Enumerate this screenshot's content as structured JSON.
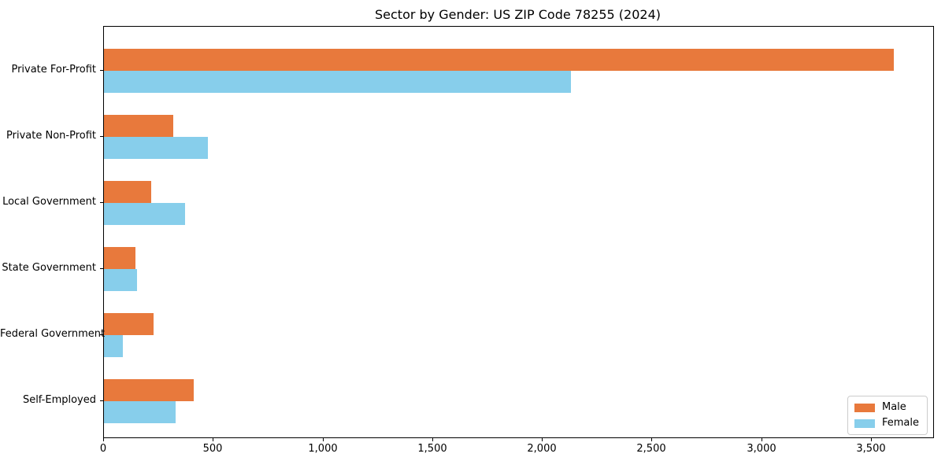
{
  "chart_data": {
    "type": "bar",
    "orientation": "horizontal",
    "title": "Sector by Gender: US ZIP Code 78255 (2024)",
    "categories": [
      "Private For-Profit",
      "Private Non-Profit",
      "Local Government",
      "State Government",
      "Federal Government",
      "Self-Employed"
    ],
    "series": [
      {
        "name": "Male",
        "color": "#E8793C",
        "values": [
          3600,
          315,
          215,
          143,
          225,
          410
        ]
      },
      {
        "name": "Female",
        "color": "#87CEEB",
        "values": [
          2130,
          475,
          370,
          150,
          87,
          325
        ]
      }
    ],
    "xlabel": "",
    "ylabel": "",
    "xlim": [
      0,
      3780
    ],
    "xticks": [
      0,
      500,
      1000,
      1500,
      2000,
      2500,
      3000,
      3500
    ],
    "xtick_labels": [
      "0",
      "500",
      "1,000",
      "1,500",
      "2,000",
      "2,500",
      "3,000",
      "3,500"
    ],
    "grid": false,
    "legend": {
      "position": "lower right",
      "entries": [
        "Male",
        "Female"
      ]
    },
    "colors": {
      "spine": "#000000",
      "background": "#ffffff",
      "legend_border": "#cccccc"
    }
  }
}
